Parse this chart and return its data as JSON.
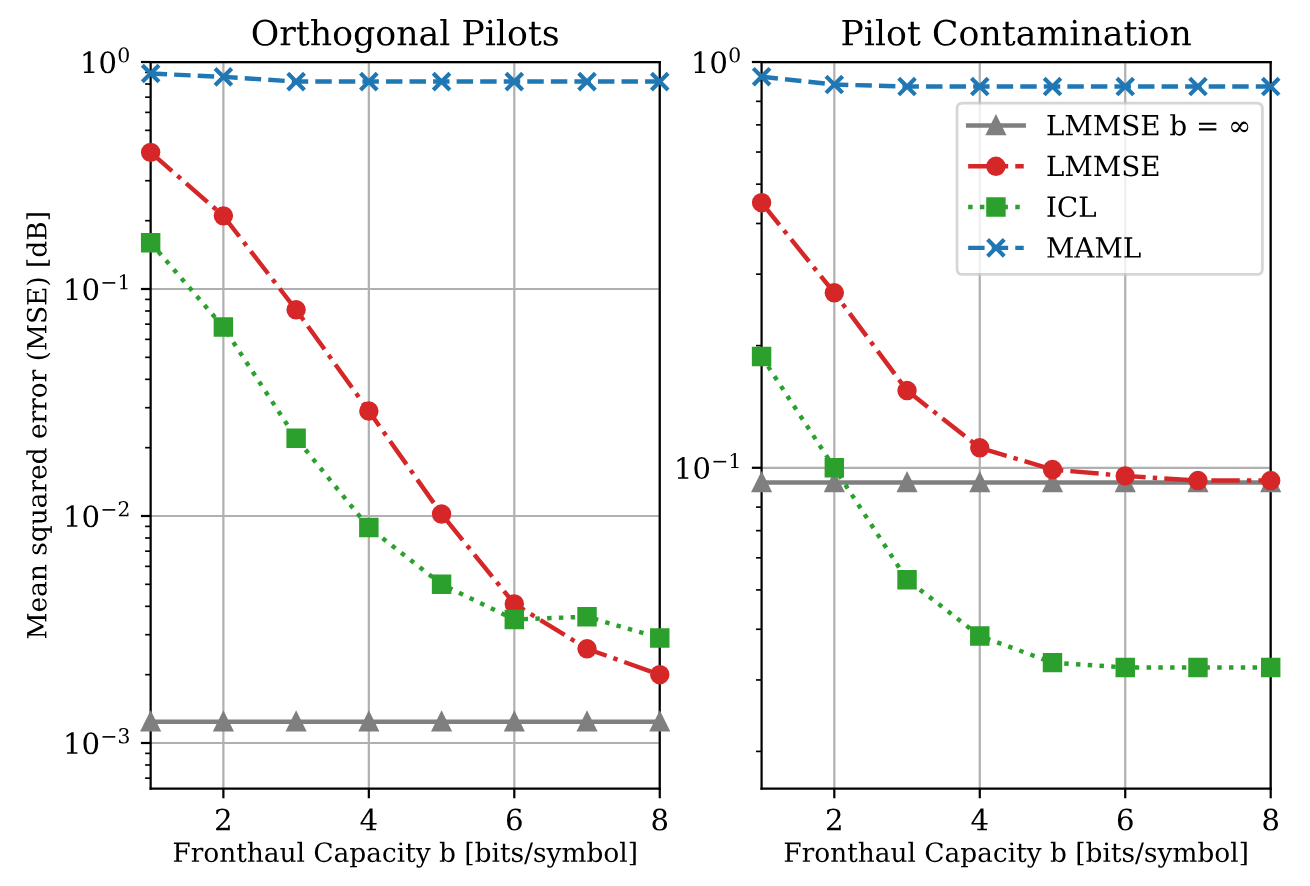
{
  "chart_data": [
    {
      "type": "line",
      "title": "Orthogonal Pilots",
      "xlabel": "Fronthaul Capacity b [bits/symbol]",
      "ylabel": "Mean squared error (MSE) [dB]",
      "x": [
        1,
        2,
        3,
        4,
        5,
        6,
        7,
        8
      ],
      "log": "y",
      "grid": true,
      "legend": false,
      "xlim": [
        1,
        8
      ],
      "xticks": [
        2,
        4,
        6,
        8
      ],
      "ylim": [
        0.00063,
        1
      ],
      "yticks": [
        {
          "value": 0.001,
          "label": "10$^{−3}$"
        },
        {
          "value": 0.01,
          "label": "10$^{−2}$"
        },
        {
          "value": 0.1,
          "label": "10$^{−1}$"
        },
        {
          "value": 1,
          "label": "10$^{0}$"
        }
      ],
      "series": [
        {
          "color": "#7f7f7f",
          "marker": "triangle",
          "line_style": "solid",
          "values": [
            0.00124,
            0.00124,
            0.00124,
            0.00124,
            0.00124,
            0.00124,
            0.00124,
            0.00124
          ]
        },
        {
          "color": "#d62728",
          "marker": "circle",
          "line_style": "dashdot",
          "values": [
            0.4,
            0.21,
            0.081,
            0.029,
            0.0102,
            0.0041,
            0.0026,
            0.002
          ]
        },
        {
          "color": "#2ca02c",
          "marker": "square",
          "line_style": "dotted",
          "values": [
            0.16,
            0.068,
            0.022,
            0.0089,
            0.005,
            0.0035,
            0.0036,
            0.0029
          ]
        },
        {
          "color": "#1f77b4",
          "marker": "cross",
          "line_style": "dashed",
          "values": [
            0.89,
            0.86,
            0.82,
            0.82,
            0.82,
            0.82,
            0.82,
            0.82
          ]
        }
      ]
    },
    {
      "type": "line",
      "title": "Pilot Contamination",
      "xlabel": "Fronthaul Capacity b [bits/symbol]",
      "x": [
        1,
        2,
        3,
        4,
        5,
        6,
        7,
        8
      ],
      "log": "y",
      "grid": true,
      "legend": "top right",
      "xlim": [
        1,
        8
      ],
      "xticks": [
        2,
        4,
        6,
        8
      ],
      "ylim": [
        0.0162,
        1
      ],
      "yticks": [
        {
          "value": 0.1,
          "label": "10$^{−1}$"
        },
        {
          "value": 1,
          "label": "10$^{0}$"
        }
      ],
      "series": [
        {
          "name": "LMMSE b = ∞",
          "color": "#7f7f7f",
          "marker": "triangle",
          "line_style": "solid",
          "values": [
            0.092,
            0.092,
            0.092,
            0.092,
            0.092,
            0.092,
            0.092,
            0.092
          ]
        },
        {
          "name": "LMMSE",
          "color": "#d62728",
          "marker": "circle",
          "line_style": "dashdot",
          "values": [
            0.45,
            0.27,
            0.155,
            0.112,
            0.099,
            0.0955,
            0.093,
            0.093
          ]
        },
        {
          "name": "ICL",
          "color": "#2ca02c",
          "marker": "square",
          "line_style": "dotted",
          "values": [
            0.188,
            0.1,
            0.053,
            0.0385,
            0.0331,
            0.0322,
            0.0322,
            0.0322
          ]
        },
        {
          "name": "MAML",
          "color": "#1f77b4",
          "marker": "cross",
          "line_style": "dashed",
          "values": [
            0.92,
            0.88,
            0.87,
            0.87,
            0.87,
            0.87,
            0.87,
            0.87
          ]
        }
      ]
    }
  ]
}
